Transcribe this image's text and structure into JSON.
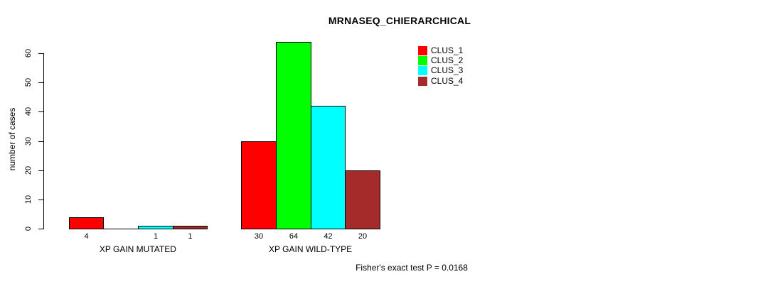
{
  "chart_data": {
    "type": "bar",
    "title": "MRNASEQ_CHIERARCHICAL",
    "ylabel": "number of cases",
    "xlabel": "",
    "categories": [
      "XP GAIN MUTATED",
      "XP GAIN WILD-TYPE"
    ],
    "series": [
      {
        "name": "CLUS_1",
        "color": "#FF0000",
        "values": [
          4,
          30
        ]
      },
      {
        "name": "CLUS_2",
        "color": "#00FF00",
        "values": [
          0,
          64
        ]
      },
      {
        "name": "CLUS_3",
        "color": "#00FFFF",
        "values": [
          1,
          42
        ]
      },
      {
        "name": "CLUS_4",
        "color": "#A52A2A",
        "values": [
          1,
          20
        ]
      }
    ],
    "bar_value_labels": [
      [
        "4",
        "",
        "1",
        "1"
      ],
      [
        "30",
        "64",
        "42",
        "20"
      ]
    ],
    "yticks": [
      0,
      10,
      20,
      30,
      40,
      50,
      60
    ],
    "ylim": [
      0,
      60
    ],
    "grid": false,
    "legend_position": "top-right",
    "legend_entries": [
      "CLUS_1",
      "CLUS_2",
      "CLUS_3",
      "CLUS_4"
    ],
    "annotation": "Fisher's exact test P = 0.0168",
    "axis_color": "#000000",
    "background_color": "#FFFFFF"
  }
}
